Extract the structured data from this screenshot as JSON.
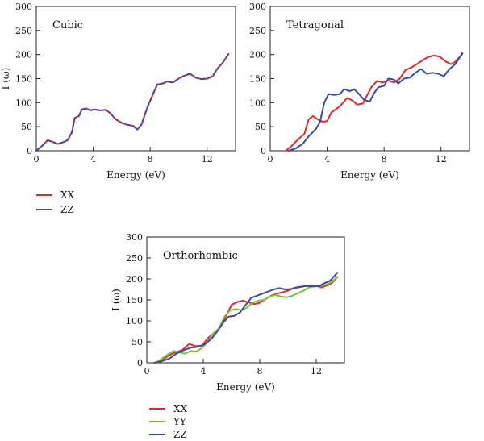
{
  "chart_data": [
    {
      "type": "line",
      "title": "Cubic",
      "xlabel": "Energy (eV)",
      "ylabel": "I (ω)",
      "xlim": [
        0,
        14
      ],
      "ylim": [
        0,
        300
      ],
      "xticks": [
        0,
        4,
        8,
        12
      ],
      "yticks": [
        0,
        50,
        100,
        150,
        200,
        250,
        300
      ],
      "series": [
        {
          "name": "XX",
          "color": "#e8262b",
          "points": [
            [
              0,
              0
            ],
            [
              0.4,
              10
            ],
            [
              0.8,
              22
            ],
            [
              1.2,
              18
            ],
            [
              1.5,
              14
            ],
            [
              1.9,
              18
            ],
            [
              2.2,
              22
            ],
            [
              2.5,
              38
            ],
            [
              2.7,
              68
            ],
            [
              3.0,
              72
            ],
            [
              3.2,
              86
            ],
            [
              3.5,
              88
            ],
            [
              3.8,
              84
            ],
            [
              4.1,
              86
            ],
            [
              4.5,
              84
            ],
            [
              4.9,
              85
            ],
            [
              5.2,
              78
            ],
            [
              5.6,
              65
            ],
            [
              6.0,
              58
            ],
            [
              6.4,
              54
            ],
            [
              6.8,
              52
            ],
            [
              7.1,
              44
            ],
            [
              7.4,
              55
            ],
            [
              7.8,
              90
            ],
            [
              8.2,
              118
            ],
            [
              8.5,
              138
            ],
            [
              8.9,
              140
            ],
            [
              9.2,
              144
            ],
            [
              9.6,
              142
            ],
            [
              10.0,
              150
            ],
            [
              10.4,
              156
            ],
            [
              10.8,
              160
            ],
            [
              11.2,
              152
            ],
            [
              11.6,
              149
            ],
            [
              12.0,
              150
            ],
            [
              12.4,
              155
            ],
            [
              12.7,
              170
            ],
            [
              13.1,
              183
            ],
            [
              13.5,
              201
            ]
          ]
        },
        {
          "name": "ZZ",
          "color": "#3b4aa3",
          "points": [
            [
              0,
              0
            ],
            [
              0.4,
              10
            ],
            [
              0.8,
              22
            ],
            [
              1.2,
              18
            ],
            [
              1.5,
              14
            ],
            [
              1.9,
              18
            ],
            [
              2.2,
              22
            ],
            [
              2.5,
              38
            ],
            [
              2.7,
              68
            ],
            [
              3.0,
              72
            ],
            [
              3.2,
              86
            ],
            [
              3.5,
              88
            ],
            [
              3.8,
              84
            ],
            [
              4.1,
              86
            ],
            [
              4.5,
              84
            ],
            [
              4.9,
              85
            ],
            [
              5.2,
              78
            ],
            [
              5.6,
              65
            ],
            [
              6.0,
              58
            ],
            [
              6.4,
              54
            ],
            [
              6.8,
              52
            ],
            [
              7.1,
              44
            ],
            [
              7.4,
              55
            ],
            [
              7.8,
              90
            ],
            [
              8.2,
              118
            ],
            [
              8.5,
              138
            ],
            [
              8.9,
              140
            ],
            [
              9.2,
              144
            ],
            [
              9.6,
              142
            ],
            [
              10.0,
              150
            ],
            [
              10.4,
              156
            ],
            [
              10.8,
              160
            ],
            [
              11.2,
              152
            ],
            [
              11.6,
              149
            ],
            [
              12.0,
              150
            ],
            [
              12.4,
              155
            ],
            [
              12.7,
              170
            ],
            [
              13.1,
              183
            ],
            [
              13.5,
              201
            ]
          ]
        }
      ]
    },
    {
      "type": "line",
      "title": "Tetragonal",
      "xlabel": "Energy (eV)",
      "ylabel": "",
      "xlim": [
        0,
        14
      ],
      "ylim": [
        0,
        300
      ],
      "xticks": [
        0,
        4,
        8,
        12
      ],
      "yticks": [
        0,
        50,
        100,
        150,
        200,
        250,
        300
      ],
      "series": [
        {
          "name": "XX",
          "color": "#e8262b",
          "points": [
            [
              1.1,
              0
            ],
            [
              1.5,
              10
            ],
            [
              2.0,
              25
            ],
            [
              2.4,
              35
            ],
            [
              2.7,
              65
            ],
            [
              3.0,
              72
            ],
            [
              3.3,
              66
            ],
            [
              3.7,
              60
            ],
            [
              4.0,
              62
            ],
            [
              4.3,
              80
            ],
            [
              4.7,
              88
            ],
            [
              5.0,
              96
            ],
            [
              5.4,
              110
            ],
            [
              5.8,
              104
            ],
            [
              6.1,
              96
            ],
            [
              6.5,
              98
            ],
            [
              6.8,
              115
            ],
            [
              7.1,
              132
            ],
            [
              7.5,
              145
            ],
            [
              7.9,
              142
            ],
            [
              8.3,
              146
            ],
            [
              8.7,
              142
            ],
            [
              9.1,
              150
            ],
            [
              9.5,
              168
            ],
            [
              9.9,
              173
            ],
            [
              10.3,
              180
            ],
            [
              10.7,
              188
            ],
            [
              11.1,
              195
            ],
            [
              11.5,
              198
            ],
            [
              11.9,
              196
            ],
            [
              12.3,
              186
            ],
            [
              12.7,
              180
            ],
            [
              13.0,
              185
            ],
            [
              13.5,
              201
            ]
          ]
        },
        {
          "name": "ZZ",
          "color": "#3b4aa3",
          "points": [
            [
              1.3,
              0
            ],
            [
              1.8,
              5
            ],
            [
              2.3,
              15
            ],
            [
              2.7,
              30
            ],
            [
              3.2,
              45
            ],
            [
              3.5,
              60
            ],
            [
              3.8,
              100
            ],
            [
              4.1,
              118
            ],
            [
              4.5,
              116
            ],
            [
              4.9,
              118
            ],
            [
              5.2,
              128
            ],
            [
              5.6,
              124
            ],
            [
              5.9,
              128
            ],
            [
              6.3,
              116
            ],
            [
              6.6,
              106
            ],
            [
              7.0,
              102
            ],
            [
              7.3,
              120
            ],
            [
              7.6,
              132
            ],
            [
              8.0,
              135
            ],
            [
              8.3,
              150
            ],
            [
              8.7,
              148
            ],
            [
              9.0,
              140
            ],
            [
              9.4,
              150
            ],
            [
              9.8,
              152
            ],
            [
              10.2,
              162
            ],
            [
              10.6,
              170
            ],
            [
              11.0,
              160
            ],
            [
              11.4,
              162
            ],
            [
              11.8,
              160
            ],
            [
              12.2,
              155
            ],
            [
              12.6,
              170
            ],
            [
              13.0,
              180
            ],
            [
              13.5,
              203
            ]
          ]
        }
      ]
    },
    {
      "type": "line",
      "title": "Orthorhombic",
      "xlabel": "Energy (eV)",
      "ylabel": "I (ω)",
      "xlim": [
        0,
        14
      ],
      "ylim": [
        0,
        300
      ],
      "xticks": [
        0,
        4,
        8,
        12
      ],
      "yticks": [
        0,
        50,
        100,
        150,
        200,
        250,
        300
      ],
      "series": [
        {
          "name": "XX",
          "color": "#e8262b",
          "points": [
            [
              0.5,
              0
            ],
            [
              1.0,
              5
            ],
            [
              1.6,
              18
            ],
            [
              2.1,
              26
            ],
            [
              2.5,
              30
            ],
            [
              3.0,
              45
            ],
            [
              3.4,
              40
            ],
            [
              3.9,
              40
            ],
            [
              4.3,
              58
            ],
            [
              4.8,
              72
            ],
            [
              5.2,
              85
            ],
            [
              5.6,
              110
            ],
            [
              6.0,
              138
            ],
            [
              6.4,
              145
            ],
            [
              6.8,
              148
            ],
            [
              7.2,
              144
            ],
            [
              7.6,
              140
            ],
            [
              8.0,
              143
            ],
            [
              8.4,
              152
            ],
            [
              8.8,
              160
            ],
            [
              9.2,
              165
            ],
            [
              9.6,
              168
            ],
            [
              10.0,
              172
            ],
            [
              10.4,
              178
            ],
            [
              10.8,
              180
            ],
            [
              11.2,
              183
            ],
            [
              11.6,
              185
            ],
            [
              12.0,
              183
            ],
            [
              12.4,
              180
            ],
            [
              12.8,
              185
            ],
            [
              13.1,
              190
            ],
            [
              13.5,
              205
            ]
          ]
        },
        {
          "name": "YY",
          "color": "#7abf3c",
          "points": [
            [
              0.6,
              0
            ],
            [
              1.0,
              8
            ],
            [
              1.5,
              20
            ],
            [
              1.9,
              28
            ],
            [
              2.3,
              25
            ],
            [
              2.7,
              22
            ],
            [
              3.1,
              28
            ],
            [
              3.5,
              27
            ],
            [
              3.9,
              35
            ],
            [
              4.3,
              50
            ],
            [
              4.7,
              70
            ],
            [
              5.1,
              82
            ],
            [
              5.5,
              110
            ],
            [
              5.9,
              125
            ],
            [
              6.3,
              128
            ],
            [
              6.7,
              125
            ],
            [
              7.1,
              132
            ],
            [
              7.5,
              143
            ],
            [
              7.9,
              148
            ],
            [
              8.3,
              150
            ],
            [
              8.7,
              158
            ],
            [
              9.1,
              162
            ],
            [
              9.5,
              158
            ],
            [
              9.9,
              156
            ],
            [
              10.3,
              160
            ],
            [
              10.7,
              166
            ],
            [
              11.1,
              172
            ],
            [
              11.5,
              180
            ],
            [
              11.9,
              183
            ],
            [
              12.3,
              183
            ],
            [
              12.7,
              186
            ],
            [
              13.1,
              193
            ],
            [
              13.5,
              205
            ]
          ]
        },
        {
          "name": "ZZ",
          "color": "#3b4aa3",
          "points": [
            [
              0.6,
              0
            ],
            [
              1.0,
              3
            ],
            [
              1.6,
              10
            ],
            [
              2.1,
              22
            ],
            [
              2.6,
              30
            ],
            [
              3.1,
              36
            ],
            [
              3.6,
              38
            ],
            [
              4.1,
              44
            ],
            [
              4.6,
              58
            ],
            [
              5.0,
              75
            ],
            [
              5.4,
              95
            ],
            [
              5.8,
              110
            ],
            [
              6.2,
              112
            ],
            [
              6.6,
              120
            ],
            [
              7.0,
              138
            ],
            [
              7.4,
              155
            ],
            [
              7.8,
              160
            ],
            [
              8.2,
              165
            ],
            [
              8.6,
              170
            ],
            [
              9.0,
              175
            ],
            [
              9.4,
              178
            ],
            [
              9.8,
              175
            ],
            [
              10.2,
              176
            ],
            [
              10.6,
              180
            ],
            [
              11.0,
              182
            ],
            [
              11.4,
              183
            ],
            [
              11.8,
              182
            ],
            [
              12.2,
              183
            ],
            [
              12.6,
              190
            ],
            [
              13.0,
              196
            ],
            [
              13.5,
              215
            ]
          ]
        }
      ]
    }
  ],
  "legends": [
    {
      "items": [
        {
          "label": "XX",
          "color": "#e8262b"
        },
        {
          "label": "ZZ",
          "color": "#3b4aa3"
        }
      ]
    },
    {
      "items": [
        {
          "label": "XX",
          "color": "#e8262b"
        },
        {
          "label": "YY",
          "color": "#7abf3c"
        },
        {
          "label": "ZZ",
          "color": "#3b4aa3"
        }
      ]
    }
  ]
}
